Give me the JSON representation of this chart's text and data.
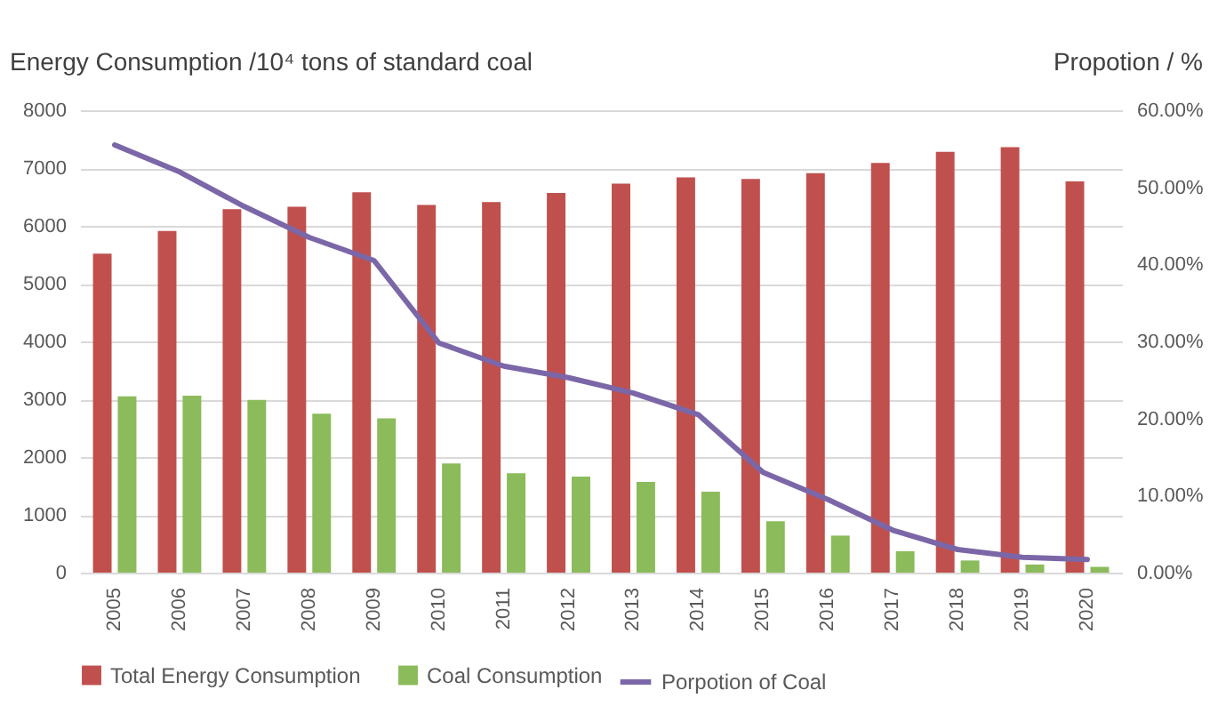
{
  "chart_data": {
    "type": "bar",
    "ylabel": "Energy Consumption /10⁴ tons of standard coal",
    "y2label": "Propotion / %",
    "categories": [
      "2005",
      "2006",
      "2007",
      "2008",
      "2009",
      "2010",
      "2011",
      "2012",
      "2013",
      "2014",
      "2015",
      "2016",
      "2017",
      "2018",
      "2019",
      "2020"
    ],
    "series": [
      {
        "name": "Total Energy Consumption",
        "color": "#c0504d",
        "values": [
          5520,
          5910,
          6290,
          6330,
          6580,
          6360,
          6410,
          6570,
          6730,
          6840,
          6810,
          6910,
          7090,
          7280,
          7360,
          6770
        ]
      },
      {
        "name": "Coal Consumption",
        "color": "#8bbb5a",
        "values": [
          3050,
          3060,
          2990,
          2750,
          2670,
          1890,
          1720,
          1660,
          1570,
          1400,
          890,
          640,
          370,
          210,
          140,
          100
        ]
      },
      {
        "name": "Porpotion of Coal",
        "type": "line",
        "axis": "y2",
        "color": "#7b67a8",
        "values": [
          55.5,
          52,
          47.5,
          43.5,
          40.5,
          29.8,
          26.8,
          25.3,
          23.3,
          20.5,
          13,
          9.5,
          5.5,
          3,
          2,
          1.7
        ]
      }
    ],
    "ylim": [
      0,
      8000
    ],
    "yticks": [
      0,
      1000,
      2000,
      3000,
      4000,
      5000,
      6000,
      7000,
      8000
    ],
    "y2lim": [
      0,
      60
    ],
    "y2ticks": [
      {
        "value": 0,
        "label": "0.00%"
      },
      {
        "value": 10,
        "label": "10.00%"
      },
      {
        "value": 20,
        "label": "20.00%"
      },
      {
        "value": 30,
        "label": "30.00%"
      },
      {
        "value": 40,
        "label": "40.00%"
      },
      {
        "value": 50,
        "label": "50.00%"
      },
      {
        "value": 60,
        "label": "60.00%"
      }
    ],
    "grid": "y",
    "legend": "bottom",
    "marker": "none",
    "line_style": "solid"
  }
}
